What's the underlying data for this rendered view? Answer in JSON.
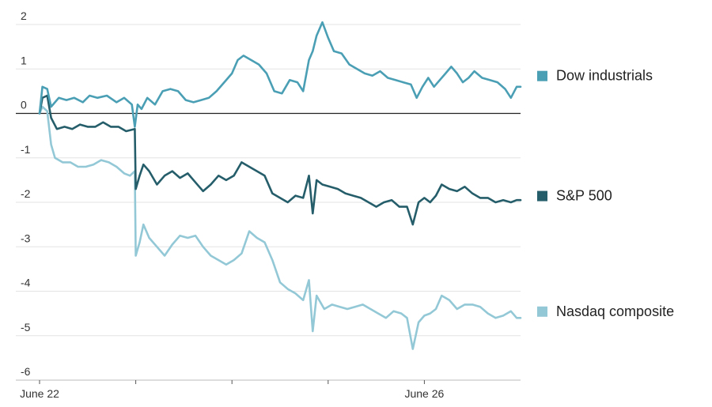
{
  "chart_data": {
    "type": "line",
    "title": "",
    "xlabel": "",
    "ylabel": "",
    "ylim": [
      -6,
      2
    ],
    "yticks": [
      2,
      1,
      0,
      -1,
      -2,
      -3,
      -4,
      -5,
      -6
    ],
    "xlim": [
      0,
      5
    ],
    "xticks": [
      0,
      1,
      2,
      3,
      4,
      5
    ],
    "xtick_labels": [
      "June 22",
      "",
      "",
      "",
      "June 26",
      ""
    ],
    "grid": true,
    "legend_placement": "right",
    "series": [
      {
        "name": "Dow industrials",
        "color": "#4b9fb5",
        "points": [
          [
            0.0,
            0.0
          ],
          [
            0.03,
            0.6
          ],
          [
            0.08,
            0.55
          ],
          [
            0.12,
            0.15
          ],
          [
            0.2,
            0.35
          ],
          [
            0.28,
            0.3
          ],
          [
            0.36,
            0.35
          ],
          [
            0.45,
            0.25
          ],
          [
            0.52,
            0.4
          ],
          [
            0.6,
            0.35
          ],
          [
            0.7,
            0.4
          ],
          [
            0.8,
            0.25
          ],
          [
            0.88,
            0.35
          ],
          [
            0.96,
            0.2
          ],
          [
            0.99,
            -0.3
          ],
          [
            1.02,
            0.2
          ],
          [
            1.06,
            0.1
          ],
          [
            1.12,
            0.35
          ],
          [
            1.2,
            0.2
          ],
          [
            1.28,
            0.5
          ],
          [
            1.36,
            0.55
          ],
          [
            1.44,
            0.5
          ],
          [
            1.52,
            0.3
          ],
          [
            1.6,
            0.25
          ],
          [
            1.68,
            0.3
          ],
          [
            1.76,
            0.35
          ],
          [
            1.84,
            0.5
          ],
          [
            1.92,
            0.7
          ],
          [
            2.0,
            0.9
          ],
          [
            2.06,
            1.2
          ],
          [
            2.12,
            1.3
          ],
          [
            2.2,
            1.2
          ],
          [
            2.28,
            1.1
          ],
          [
            2.36,
            0.9
          ],
          [
            2.44,
            0.5
          ],
          [
            2.52,
            0.45
          ],
          [
            2.6,
            0.75
          ],
          [
            2.68,
            0.7
          ],
          [
            2.74,
            0.5
          ],
          [
            2.8,
            1.2
          ],
          [
            2.84,
            1.4
          ],
          [
            2.88,
            1.75
          ],
          [
            2.94,
            2.05
          ],
          [
            3.0,
            1.7
          ],
          [
            3.06,
            1.4
          ],
          [
            3.14,
            1.35
          ],
          [
            3.22,
            1.1
          ],
          [
            3.3,
            1.0
          ],
          [
            3.38,
            0.9
          ],
          [
            3.46,
            0.85
          ],
          [
            3.54,
            0.95
          ],
          [
            3.62,
            0.8
          ],
          [
            3.7,
            0.75
          ],
          [
            3.78,
            0.7
          ],
          [
            3.86,
            0.65
          ],
          [
            3.92,
            0.35
          ],
          [
            3.98,
            0.6
          ],
          [
            4.04,
            0.8
          ],
          [
            4.1,
            0.6
          ],
          [
            4.16,
            0.75
          ],
          [
            4.22,
            0.9
          ],
          [
            4.28,
            1.05
          ],
          [
            4.34,
            0.9
          ],
          [
            4.4,
            0.7
          ],
          [
            4.46,
            0.8
          ],
          [
            4.52,
            0.95
          ],
          [
            4.6,
            0.8
          ],
          [
            4.68,
            0.75
          ],
          [
            4.76,
            0.7
          ],
          [
            4.84,
            0.55
          ],
          [
            4.9,
            0.35
          ],
          [
            4.96,
            0.6
          ],
          [
            5.0,
            0.6
          ]
        ]
      },
      {
        "name": "S&P 500",
        "color": "#255e6a",
        "points": [
          [
            0.0,
            0.0
          ],
          [
            0.03,
            0.35
          ],
          [
            0.08,
            0.4
          ],
          [
            0.12,
            -0.1
          ],
          [
            0.18,
            -0.35
          ],
          [
            0.26,
            -0.3
          ],
          [
            0.34,
            -0.35
          ],
          [
            0.42,
            -0.25
          ],
          [
            0.5,
            -0.3
          ],
          [
            0.58,
            -0.3
          ],
          [
            0.66,
            -0.2
          ],
          [
            0.74,
            -0.3
          ],
          [
            0.82,
            -0.3
          ],
          [
            0.9,
            -0.4
          ],
          [
            0.99,
            -0.35
          ],
          [
            1.0,
            -1.7
          ],
          [
            1.04,
            -1.4
          ],
          [
            1.08,
            -1.15
          ],
          [
            1.14,
            -1.3
          ],
          [
            1.22,
            -1.6
          ],
          [
            1.3,
            -1.4
          ],
          [
            1.38,
            -1.3
          ],
          [
            1.46,
            -1.45
          ],
          [
            1.54,
            -1.35
          ],
          [
            1.62,
            -1.55
          ],
          [
            1.7,
            -1.75
          ],
          [
            1.78,
            -1.6
          ],
          [
            1.86,
            -1.4
          ],
          [
            1.94,
            -1.5
          ],
          [
            2.02,
            -1.4
          ],
          [
            2.1,
            -1.1
          ],
          [
            2.18,
            -1.2
          ],
          [
            2.26,
            -1.3
          ],
          [
            2.34,
            -1.4
          ],
          [
            2.42,
            -1.8
          ],
          [
            2.5,
            -1.9
          ],
          [
            2.58,
            -2.0
          ],
          [
            2.66,
            -1.85
          ],
          [
            2.74,
            -1.9
          ],
          [
            2.8,
            -1.4
          ],
          [
            2.84,
            -2.25
          ],
          [
            2.88,
            -1.5
          ],
          [
            2.94,
            -1.6
          ],
          [
            3.02,
            -1.65
          ],
          [
            3.1,
            -1.7
          ],
          [
            3.18,
            -1.8
          ],
          [
            3.26,
            -1.85
          ],
          [
            3.34,
            -1.9
          ],
          [
            3.42,
            -2.0
          ],
          [
            3.5,
            -2.1
          ],
          [
            3.58,
            -2.0
          ],
          [
            3.66,
            -1.95
          ],
          [
            3.74,
            -2.1
          ],
          [
            3.82,
            -2.1
          ],
          [
            3.88,
            -2.5
          ],
          [
            3.94,
            -2.0
          ],
          [
            4.0,
            -1.9
          ],
          [
            4.06,
            -2.0
          ],
          [
            4.12,
            -1.85
          ],
          [
            4.18,
            -1.6
          ],
          [
            4.26,
            -1.7
          ],
          [
            4.34,
            -1.75
          ],
          [
            4.42,
            -1.65
          ],
          [
            4.5,
            -1.8
          ],
          [
            4.58,
            -1.9
          ],
          [
            4.66,
            -1.9
          ],
          [
            4.74,
            -2.0
          ],
          [
            4.82,
            -1.95
          ],
          [
            4.9,
            -2.0
          ],
          [
            4.96,
            -1.95
          ],
          [
            5.0,
            -1.95
          ]
        ]
      },
      {
        "name": "Nasdaq composite",
        "color": "#93c8d6",
        "points": [
          [
            0.0,
            0.0
          ],
          [
            0.03,
            0.15
          ],
          [
            0.08,
            0.05
          ],
          [
            0.12,
            -0.7
          ],
          [
            0.16,
            -1.0
          ],
          [
            0.24,
            -1.1
          ],
          [
            0.32,
            -1.1
          ],
          [
            0.4,
            -1.2
          ],
          [
            0.48,
            -1.2
          ],
          [
            0.56,
            -1.15
          ],
          [
            0.64,
            -1.05
          ],
          [
            0.72,
            -1.1
          ],
          [
            0.8,
            -1.2
          ],
          [
            0.88,
            -1.35
          ],
          [
            0.94,
            -1.4
          ],
          [
            0.99,
            -1.3
          ],
          [
            1.0,
            -3.2
          ],
          [
            1.04,
            -2.9
          ],
          [
            1.08,
            -2.5
          ],
          [
            1.14,
            -2.8
          ],
          [
            1.22,
            -3.0
          ],
          [
            1.3,
            -3.2
          ],
          [
            1.38,
            -2.95
          ],
          [
            1.46,
            -2.75
          ],
          [
            1.54,
            -2.8
          ],
          [
            1.62,
            -2.75
          ],
          [
            1.7,
            -3.0
          ],
          [
            1.78,
            -3.2
          ],
          [
            1.86,
            -3.3
          ],
          [
            1.94,
            -3.4
          ],
          [
            2.02,
            -3.3
          ],
          [
            2.1,
            -3.15
          ],
          [
            2.18,
            -2.65
          ],
          [
            2.26,
            -2.8
          ],
          [
            2.34,
            -2.9
          ],
          [
            2.42,
            -3.3
          ],
          [
            2.5,
            -3.8
          ],
          [
            2.58,
            -3.95
          ],
          [
            2.66,
            -4.05
          ],
          [
            2.74,
            -4.2
          ],
          [
            2.8,
            -3.75
          ],
          [
            2.84,
            -4.9
          ],
          [
            2.88,
            -4.1
          ],
          [
            2.96,
            -4.4
          ],
          [
            3.04,
            -4.3
          ],
          [
            3.12,
            -4.35
          ],
          [
            3.2,
            -4.4
          ],
          [
            3.28,
            -4.35
          ],
          [
            3.36,
            -4.3
          ],
          [
            3.44,
            -4.4
          ],
          [
            3.52,
            -4.5
          ],
          [
            3.6,
            -4.6
          ],
          [
            3.68,
            -4.45
          ],
          [
            3.76,
            -4.5
          ],
          [
            3.82,
            -4.6
          ],
          [
            3.88,
            -5.3
          ],
          [
            3.94,
            -4.7
          ],
          [
            4.0,
            -4.55
          ],
          [
            4.06,
            -4.5
          ],
          [
            4.12,
            -4.4
          ],
          [
            4.18,
            -4.1
          ],
          [
            4.26,
            -4.2
          ],
          [
            4.34,
            -4.4
          ],
          [
            4.42,
            -4.3
          ],
          [
            4.5,
            -4.3
          ],
          [
            4.58,
            -4.35
          ],
          [
            4.66,
            -4.5
          ],
          [
            4.74,
            -4.6
          ],
          [
            4.82,
            -4.55
          ],
          [
            4.9,
            -4.45
          ],
          [
            4.96,
            -4.6
          ],
          [
            5.0,
            -4.6
          ]
        ]
      }
    ]
  }
}
